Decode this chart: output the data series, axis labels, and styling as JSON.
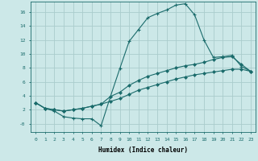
{
  "xlabel": "Humidex (Indice chaleur)",
  "bg_color": "#cce8e8",
  "grid_color": "#aacccc",
  "line_color": "#1a6b6b",
  "xlim": [
    -0.5,
    23.5
  ],
  "ylim": [
    -1.2,
    17.5
  ],
  "xticks": [
    0,
    1,
    2,
    3,
    4,
    5,
    6,
    7,
    8,
    9,
    10,
    11,
    12,
    13,
    14,
    15,
    16,
    17,
    18,
    19,
    20,
    21,
    22,
    23
  ],
  "yticks": [
    0,
    2,
    4,
    6,
    8,
    10,
    12,
    14,
    16
  ],
  "ytick_labels": [
    "-0",
    "2",
    "4",
    "6",
    "8",
    "10",
    "12",
    "14",
    "16"
  ],
  "curve1_x": [
    0,
    1,
    2,
    3,
    4,
    5,
    6,
    7,
    8,
    9,
    10,
    11,
    12,
    13,
    14,
    15,
    16,
    17,
    18,
    19,
    20,
    21,
    22,
    23
  ],
  "curve1_y": [
    3.0,
    2.2,
    1.8,
    1.0,
    0.8,
    0.7,
    0.7,
    -0.3,
    3.9,
    7.9,
    11.8,
    13.5,
    15.2,
    15.8,
    16.3,
    17.0,
    17.2,
    15.6,
    12.0,
    9.5,
    9.6,
    9.8,
    8.2,
    7.5
  ],
  "curve2_x": [
    0,
    1,
    2,
    3,
    4,
    5,
    6,
    7,
    8,
    9,
    10,
    11,
    12,
    13,
    14,
    15,
    16,
    17,
    18,
    19,
    20,
    21,
    22,
    23
  ],
  "curve2_y": [
    3.0,
    2.2,
    2.0,
    1.8,
    2.0,
    2.2,
    2.5,
    2.8,
    3.9,
    4.5,
    5.5,
    6.2,
    6.8,
    7.2,
    7.6,
    8.0,
    8.3,
    8.5,
    8.8,
    9.2,
    9.5,
    9.6,
    8.5,
    7.5
  ],
  "curve3_x": [
    0,
    1,
    2,
    3,
    4,
    5,
    6,
    7,
    8,
    9,
    10,
    11,
    12,
    13,
    14,
    15,
    16,
    17,
    18,
    19,
    20,
    21,
    22,
    23
  ],
  "curve3_y": [
    3.0,
    2.2,
    2.0,
    1.8,
    2.0,
    2.2,
    2.5,
    2.8,
    3.2,
    3.6,
    4.2,
    4.8,
    5.2,
    5.6,
    6.0,
    6.4,
    6.7,
    7.0,
    7.2,
    7.4,
    7.6,
    7.8,
    7.8,
    7.5
  ]
}
